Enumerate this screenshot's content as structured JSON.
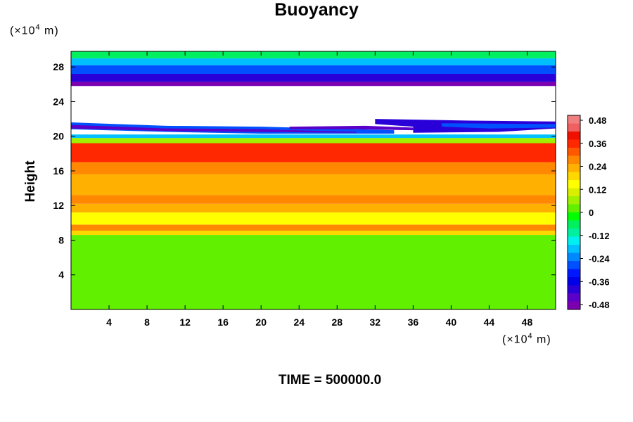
{
  "chart_data": {
    "type": "heatmap",
    "title": "Buoyancy",
    "ylabel": "Height",
    "xlabel": "",
    "x_unit": {
      "prefix": "(×10",
      "exp": "4",
      "suffix": " m)"
    },
    "y_unit": {
      "prefix": "(×10",
      "exp": "4",
      "suffix": " m)"
    },
    "xlim": [
      0,
      51
    ],
    "ylim": [
      0,
      29.8
    ],
    "xticks": [
      4,
      8,
      12,
      16,
      20,
      24,
      28,
      32,
      36,
      40,
      44,
      48
    ],
    "yticks": [
      4,
      8,
      12,
      16,
      20,
      24,
      28
    ],
    "time_label": "TIME = ",
    "time_value": "500000.0",
    "colorbar": {
      "ticks": [
        "0.48",
        "0.36",
        "0.24",
        "0.12",
        "0",
        "-0.12",
        "-0.24",
        "-0.36",
        "-0.48"
      ],
      "range": [
        -0.52,
        0.52
      ],
      "colors": [
        "#7a00b0",
        "#5a00c8",
        "#2a00d8",
        "#0000e8",
        "#0018ff",
        "#0050ff",
        "#0088ff",
        "#00c0ff",
        "#00f0f0",
        "#00f0a0",
        "#00f060",
        "#00ff00",
        "#60f000",
        "#a0f000",
        "#d8f000",
        "#ffff00",
        "#ffd800",
        "#ffb000",
        "#ff8800",
        "#ff5800",
        "#ff2800",
        "#f01000",
        "#f06060",
        "#f08080"
      ]
    },
    "layers": [
      {
        "from": 0,
        "to": 8.6,
        "value": 0.0
      },
      {
        "from": 8.6,
        "to": 9.1,
        "value": 0.2
      },
      {
        "from": 9.1,
        "to": 9.8,
        "value": 0.3
      },
      {
        "from": 9.8,
        "to": 11.2,
        "value": 0.16
      },
      {
        "from": 11.2,
        "to": 12.2,
        "value": 0.22
      },
      {
        "from": 12.2,
        "to": 13.2,
        "value": 0.28
      },
      {
        "from": 13.2,
        "to": 15.6,
        "value": 0.22
      },
      {
        "from": 15.6,
        "to": 17.0,
        "value": 0.27
      },
      {
        "from": 17.0,
        "to": 19.2,
        "value": 0.37
      },
      {
        "from": 19.2,
        "to": 19.8,
        "value": 0.08
      },
      {
        "from": 19.8,
        "to": 20.2,
        "value": -0.18
      },
      {
        "from": 25.8,
        "to": 26.3,
        "value": -0.48
      },
      {
        "from": 26.3,
        "to": 27.2,
        "value": -0.4
      },
      {
        "from": 27.2,
        "to": 28.2,
        "value": -0.3
      },
      {
        "from": 28.2,
        "to": 29.0,
        "value": -0.18
      },
      {
        "from": 29.0,
        "to": 29.8,
        "value": -0.06
      }
    ],
    "cloud_bands": [
      {
        "points": [
          [
            0,
            21.6
          ],
          [
            10,
            21.2
          ],
          [
            20,
            21.1
          ],
          [
            34,
            20.7
          ],
          [
            34,
            20.3
          ],
          [
            20,
            20.3
          ],
          [
            10,
            20.5
          ],
          [
            0,
            20.8
          ]
        ],
        "value": -0.3
      },
      {
        "points": [
          [
            0,
            21.3
          ],
          [
            10,
            20.9
          ],
          [
            20,
            20.8
          ],
          [
            30,
            20.5
          ],
          [
            30,
            20.4
          ],
          [
            20,
            20.5
          ],
          [
            10,
            20.6
          ],
          [
            0,
            20.9
          ]
        ],
        "value": -0.44
      },
      {
        "points": [
          [
            23,
            21.1
          ],
          [
            31,
            21.2
          ],
          [
            36,
            21.0
          ],
          [
            36,
            20.7
          ],
          [
            30,
            20.8
          ],
          [
            23,
            20.8
          ]
        ],
        "value": -0.44
      },
      {
        "points": [
          [
            32,
            22.0
          ],
          [
            42,
            21.8
          ],
          [
            51,
            21.7
          ],
          [
            51,
            20.9
          ],
          [
            45,
            20.5
          ],
          [
            36,
            20.4
          ],
          [
            36,
            21.1
          ],
          [
            32,
            21.4
          ]
        ],
        "value": -0.42
      },
      {
        "points": [
          [
            39,
            21.5
          ],
          [
            51,
            21.4
          ],
          [
            51,
            21.0
          ],
          [
            44,
            20.9
          ],
          [
            39,
            21.1
          ]
        ],
        "value": -0.28
      }
    ]
  }
}
